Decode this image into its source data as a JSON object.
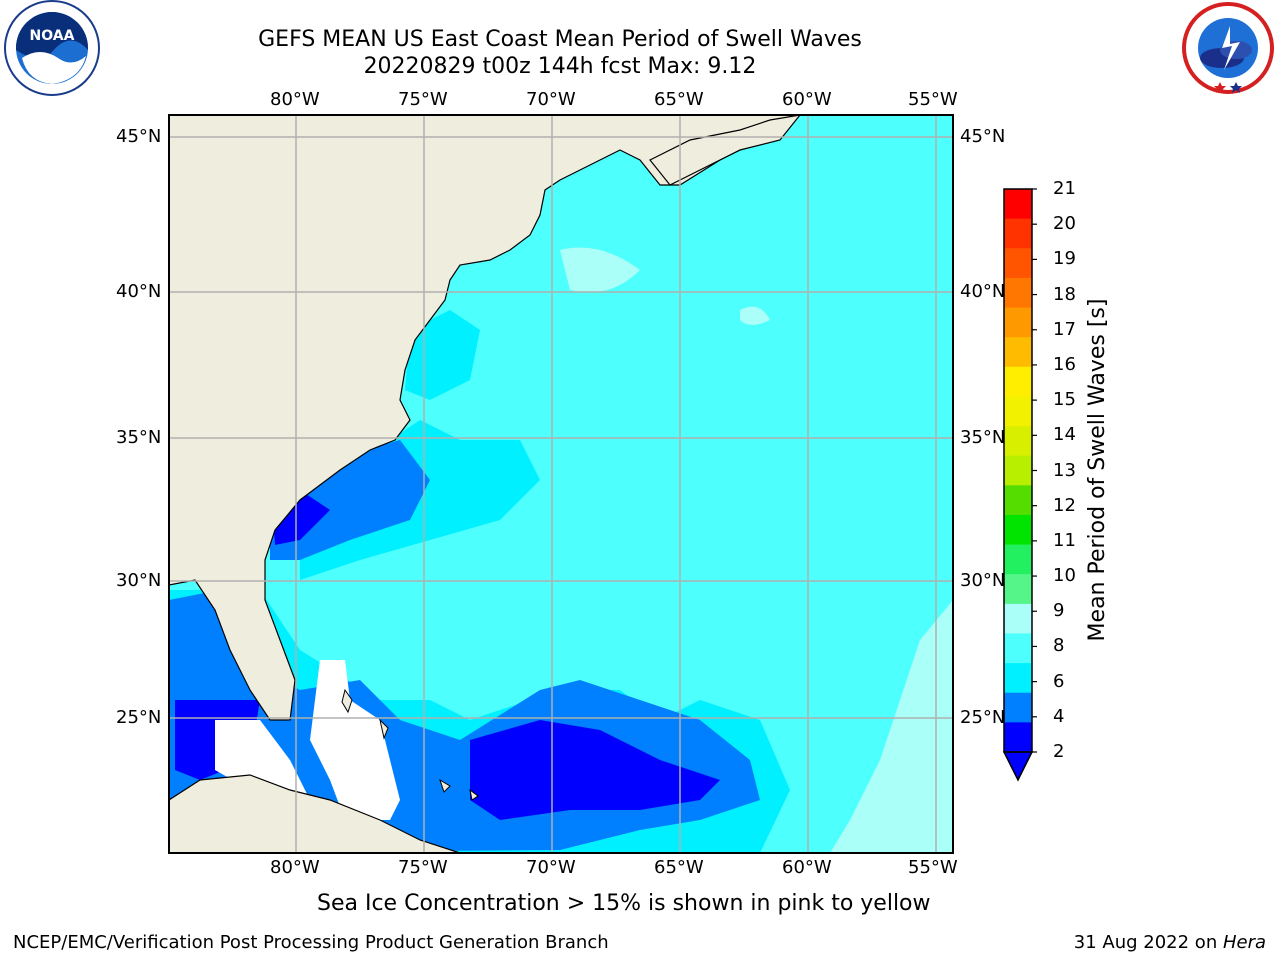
{
  "title": {
    "line1": "GEFS MEAN US East Coast Mean Period of Swell Waves",
    "line2": "20220829 t00z 144h fcst   Max: 9.12"
  },
  "map": {
    "lon_labels": [
      "80°W",
      "75°W",
      "70°W",
      "65°W",
      "60°W",
      "55°W"
    ],
    "lat_labels": [
      "45°N",
      "40°N",
      "35°N",
      "30°N",
      "25°N"
    ],
    "land_color": "#efedde",
    "ocean_color": "#4dfffd",
    "grid_color": "#b0b0b0"
  },
  "colorbar": {
    "label": "Mean Period of Swell Waves [s]",
    "ticks": [
      "21",
      "20",
      "19",
      "18",
      "17",
      "16",
      "15",
      "14",
      "13",
      "12",
      "11",
      "10",
      "9",
      "8",
      "6",
      "4",
      "2"
    ],
    "colors": [
      "#ff0000",
      "#ff3300",
      "#ff5500",
      "#ff7700",
      "#ff9900",
      "#ffbb00",
      "#ffee00",
      "#f2f200",
      "#d8f000",
      "#b8ee00",
      "#55dd00",
      "#00e400",
      "#22f060",
      "#55f58a",
      "#aafff8",
      "#4dfffd",
      "#00f0ff",
      "#0080ff",
      "#0000ff"
    ]
  },
  "note": "Sea Ice Concentration > 15% is shown in pink to yellow",
  "footer": {
    "left": "NCEP/EMC/Verification Post Processing Product Generation Branch",
    "right_date": "31 Aug 2022 on ",
    "right_system": "Hera"
  },
  "logos": {
    "noaa_text": "NOAA",
    "nws_text": "NATIONAL WEATHER SERVICE"
  }
}
